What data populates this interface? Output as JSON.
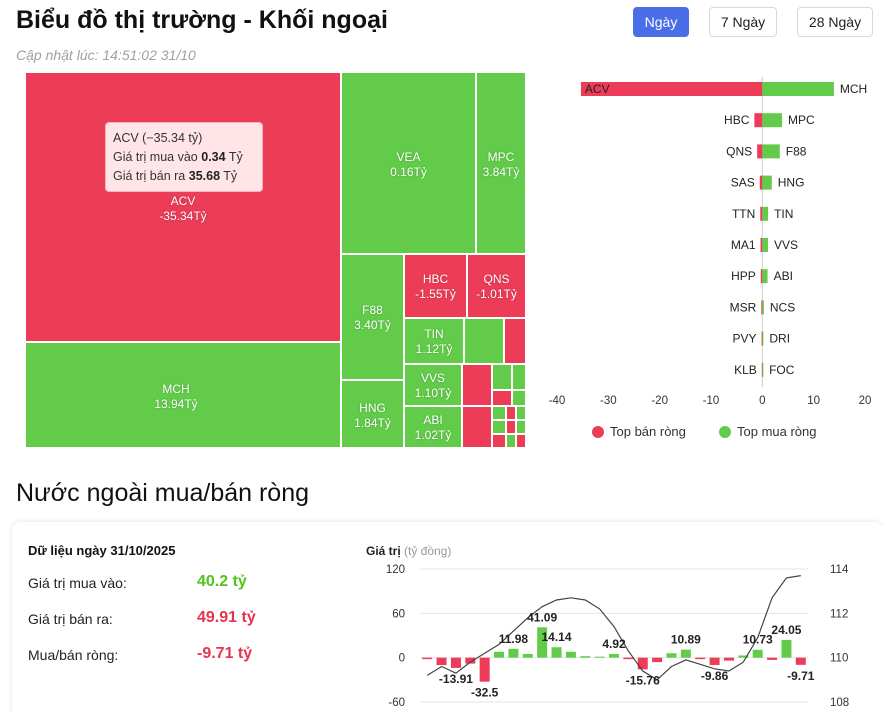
{
  "header": {
    "title": "Biểu đồ thị trường - Khối ngoại",
    "updated": "Cập nhật lúc: 14:51:02 31/10",
    "tabs": [
      {
        "label": "Ngày",
        "active": true
      },
      {
        "label": "7 Ngày",
        "active": false
      },
      {
        "label": "28 Ngày",
        "active": false
      }
    ]
  },
  "treemap": {
    "tiles": [
      {
        "ticker": "ACV",
        "value": "-35.34Tỷ",
        "sign": "neg"
      },
      {
        "ticker": "MCH",
        "value": "13.94Tỷ",
        "sign": "pos"
      },
      {
        "ticker": "VEA",
        "value": "0.16Tỷ",
        "sign": "pos"
      },
      {
        "ticker": "MPC",
        "value": "3.84Tỷ",
        "sign": "pos"
      },
      {
        "ticker": "F88",
        "value": "3.40Tỷ",
        "sign": "pos"
      },
      {
        "ticker": "HBC",
        "value": "-1.55Tỷ",
        "sign": "neg"
      },
      {
        "ticker": "QNS",
        "value": "-1.01Tỷ",
        "sign": "neg"
      },
      {
        "ticker": "TIN",
        "value": "1.12Tỷ",
        "sign": "pos"
      },
      {
        "ticker": "HNG",
        "value": "1.84Tỷ",
        "sign": "pos"
      },
      {
        "ticker": "VVS",
        "value": "1.10Tỷ",
        "sign": "pos"
      },
      {
        "ticker": "ABI",
        "value": "1.02Tỷ",
        "sign": "pos"
      }
    ],
    "tooltip": {
      "title": "ACV (−35.34 tỷ)",
      "buy_label": "Giá trị mua vào",
      "buy_value": "0.34",
      "buy_unit": "Tỷ",
      "sell_label": "Giá trị bán ra",
      "sell_value": "35.68",
      "sell_unit": "Tỷ"
    }
  },
  "colors": {
    "buy": "#62cc4a",
    "sell": "#ec3c57",
    "accent": "#4a6ee8"
  },
  "chart_data": [
    {
      "type": "bar",
      "orientation": "horizontal",
      "sell_tickers": [
        "ACV",
        "HBC",
        "QNS",
        "SAS",
        "TTN",
        "MA1",
        "HPP",
        "MSR",
        "PVY",
        "KLB"
      ],
      "sell_values": [
        -35.34,
        -1.55,
        -1.01,
        -0.5,
        -0.4,
        -0.35,
        -0.3,
        -0.2,
        -0.15,
        -0.1
      ],
      "buy_tickers": [
        "MCH",
        "MPC",
        "F88",
        "HNG",
        "TIN",
        "VVS",
        "ABI",
        "NCS",
        "DRI",
        "FOC"
      ],
      "buy_values": [
        13.94,
        3.84,
        3.4,
        1.84,
        1.12,
        1.1,
        1.02,
        0.3,
        0.2,
        0.15
      ],
      "xticks": [
        -40,
        -30,
        -20,
        -10,
        0,
        10,
        20
      ],
      "xlim": [
        -40,
        20
      ],
      "legend": [
        "Top bán ròng",
        "Top mua ròng"
      ],
      "legend_placement": "bottom"
    },
    {
      "type": "bar",
      "label_primary": "Giá trị",
      "label_unit": "(tỷ đồng)",
      "y_ticks": [
        120,
        60,
        0,
        -60
      ],
      "y2_ticks": [
        114,
        112,
        110,
        108
      ],
      "ylim": [
        -60,
        120
      ],
      "y2lim": [
        108,
        114
      ],
      "values": [
        -2,
        -10,
        -13.91,
        -8,
        -32.5,
        8,
        11.98,
        5,
        41.09,
        14.14,
        8,
        2,
        1,
        4.92,
        -2,
        -15.76,
        -6,
        6,
        10.89,
        -2,
        -9.86,
        -4,
        3,
        10.73,
        -3,
        24.05,
        -9.71
      ],
      "labeled": {
        "2": "-13.91",
        "4": "-32.5",
        "6": "11.98",
        "8": "41.09",
        "9": "14.14",
        "13": "4.92",
        "15": "-15.76",
        "18": "10.89",
        "20": "-9.86",
        "23": "10.73",
        "25": "24.05",
        "26": "-9.71"
      },
      "line": [
        109.2,
        109.6,
        109.3,
        109.8,
        110.2,
        110.6,
        111.2,
        111.8,
        112.3,
        112.6,
        112.7,
        112.6,
        112.2,
        111.4,
        110.3,
        109.4,
        109.0,
        109.6,
        109.9,
        109.7,
        109.5,
        109.4,
        109.8,
        110.9,
        112.7,
        113.6,
        113.7
      ]
    }
  ],
  "net": {
    "title": "Nước ngoài mua/bán ròng",
    "date_label": "Dữ liệu ngày 31/10/2025",
    "buy_label": "Giá trị mua vào:",
    "buy_value": "40.2 tỷ",
    "sell_label": "Giá trị bán ra:",
    "sell_value": "49.91 tỷ",
    "net_label": "Mua/bán ròng:",
    "net_value": "-9.71 tỷ"
  }
}
